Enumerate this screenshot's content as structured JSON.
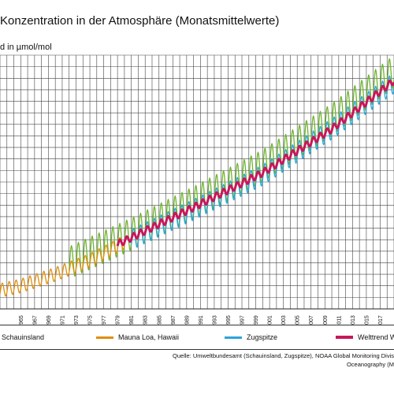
{
  "chart_data": {
    "type": "line",
    "title": "Konzentration in der Atmosphäre (Monatsmittelwerte)",
    "ylabel": "d in µmol/mol",
    "xlim": [
      1962,
      2019
    ],
    "ylim": [
      310,
      420
    ],
    "grid": true,
    "xticks": [
      "1965",
      "1967",
      "1969",
      "1971",
      "1973",
      "1975",
      "1977",
      "1979",
      "1981",
      "1983",
      "1985",
      "1987",
      "1989",
      "1991",
      "1993",
      "1995",
      "1997",
      "1999",
      "2001",
      "2003",
      "2005",
      "2007",
      "2009",
      "2011",
      "2013",
      "2015",
      "2017"
    ],
    "legend_placement": "bottom",
    "series": [
      {
        "name": "Schauinsland",
        "color": "#6cb52c",
        "start": 1972,
        "end": 2019,
        "amplitude": 7,
        "x": [
          1972,
          1980,
          1990,
          2000,
          2010,
          2019
        ],
        "y": [
          330,
          341,
          356,
          372,
          392,
          413
        ]
      },
      {
        "name": "Mauna Loa, Hawaii",
        "color": "#e08e0b",
        "start": 1962,
        "end": 1980,
        "amplitude": 3,
        "x": [
          1962,
          1965,
          1970,
          1975,
          1980
        ],
        "y": [
          318,
          320,
          325,
          331,
          339
        ]
      },
      {
        "name": "Zugspitze",
        "color": "#2aa4dc",
        "start": 1981,
        "end": 2019,
        "amplitude": 4.5,
        "x": [
          1981,
          1990,
          2000,
          2010,
          2019
        ],
        "y": [
          340,
          353,
          368,
          388,
          408
        ]
      },
      {
        "name": "Welttrend WMO",
        "color": "#c8175a",
        "start": 1979,
        "end": 2019,
        "amplitude": 1.5,
        "x": [
          1979,
          1990,
          2000,
          2010,
          2019
        ],
        "y": [
          338,
          354,
          369,
          388,
          409
        ]
      }
    ]
  },
  "legend": {
    "items": [
      {
        "label": "Schauinsland",
        "color": "#6cb52c"
      },
      {
        "label": "Mauna Loa, Hawaii",
        "color": "#e08e0b"
      },
      {
        "label": "Zugspitze",
        "color": "#2aa4dc"
      },
      {
        "label": "Welttrend WMO",
        "color": "#c8175a"
      }
    ]
  },
  "source": {
    "line1": "Quelle: Umweltbundesamt (Schauinsland, Zugspitze), NOAA Global Monitoring Divis",
    "line2": "Oceanography (M"
  }
}
